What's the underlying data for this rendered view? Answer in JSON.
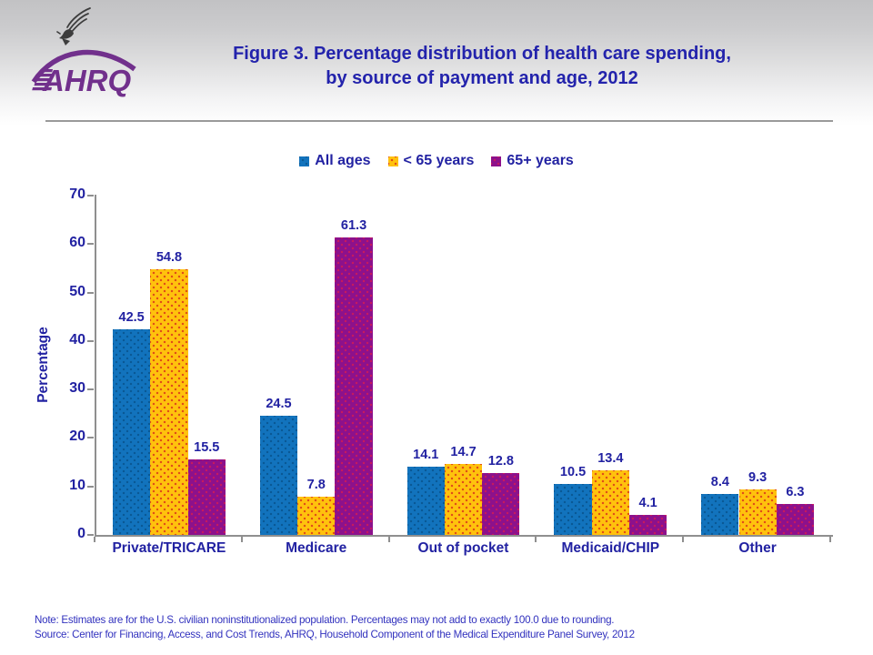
{
  "header": {
    "logo_text": "AHRQ",
    "title_line1": "Figure 3. Percentage distribution of health care spending,",
    "title_line2": "by source of payment and age, 2012"
  },
  "chart_data": {
    "type": "bar",
    "title": "Figure 3. Percentage distribution of health care spending, by source of payment and age, 2012",
    "categories": [
      "Private/TRICARE",
      "Medicare",
      "Out of pocket",
      "Medicaid/CHIP",
      "Other"
    ],
    "series": [
      {
        "name": "All ages",
        "color": "#1273BD",
        "values": [
          42.5,
          24.5,
          14.1,
          10.5,
          8.4
        ]
      },
      {
        "name": "< 65 years",
        "color": "#FFC20D",
        "values": [
          54.8,
          7.8,
          14.7,
          13.4,
          9.3
        ]
      },
      {
        "name": "65+ years",
        "color": "#8C118C",
        "values": [
          15.5,
          61.3,
          12.8,
          4.1,
          6.3
        ]
      }
    ],
    "xlabel": "",
    "ylabel": "Percentage",
    "ylim": [
      0,
      70
    ],
    "yticks": [
      0,
      10,
      20,
      30,
      40,
      50,
      60,
      70
    ],
    "grid": "off",
    "legend_position": "top",
    "bar_value_labels": "shown above each bar, one decimal"
  },
  "colors": {
    "text_navy": "#2222A2",
    "title_navy": "#2323AC",
    "note_blue": "#3232BE",
    "axis_gray": "#8f8f8f",
    "logo_purple": "#71308C"
  },
  "icons": {
    "eagle": "hhs-eagle-icon",
    "logo": "ahrq-logo"
  },
  "footer": {
    "note": "Note: Estimates are for the U.S. civilian noninstitutionalized population. Percentages may not add to exactly 100.0 due to rounding.",
    "source": "Source: Center for Financing, Access, and Cost Trends, AHRQ, Household Component of the Medical Expenditure Panel Survey, 2012"
  }
}
